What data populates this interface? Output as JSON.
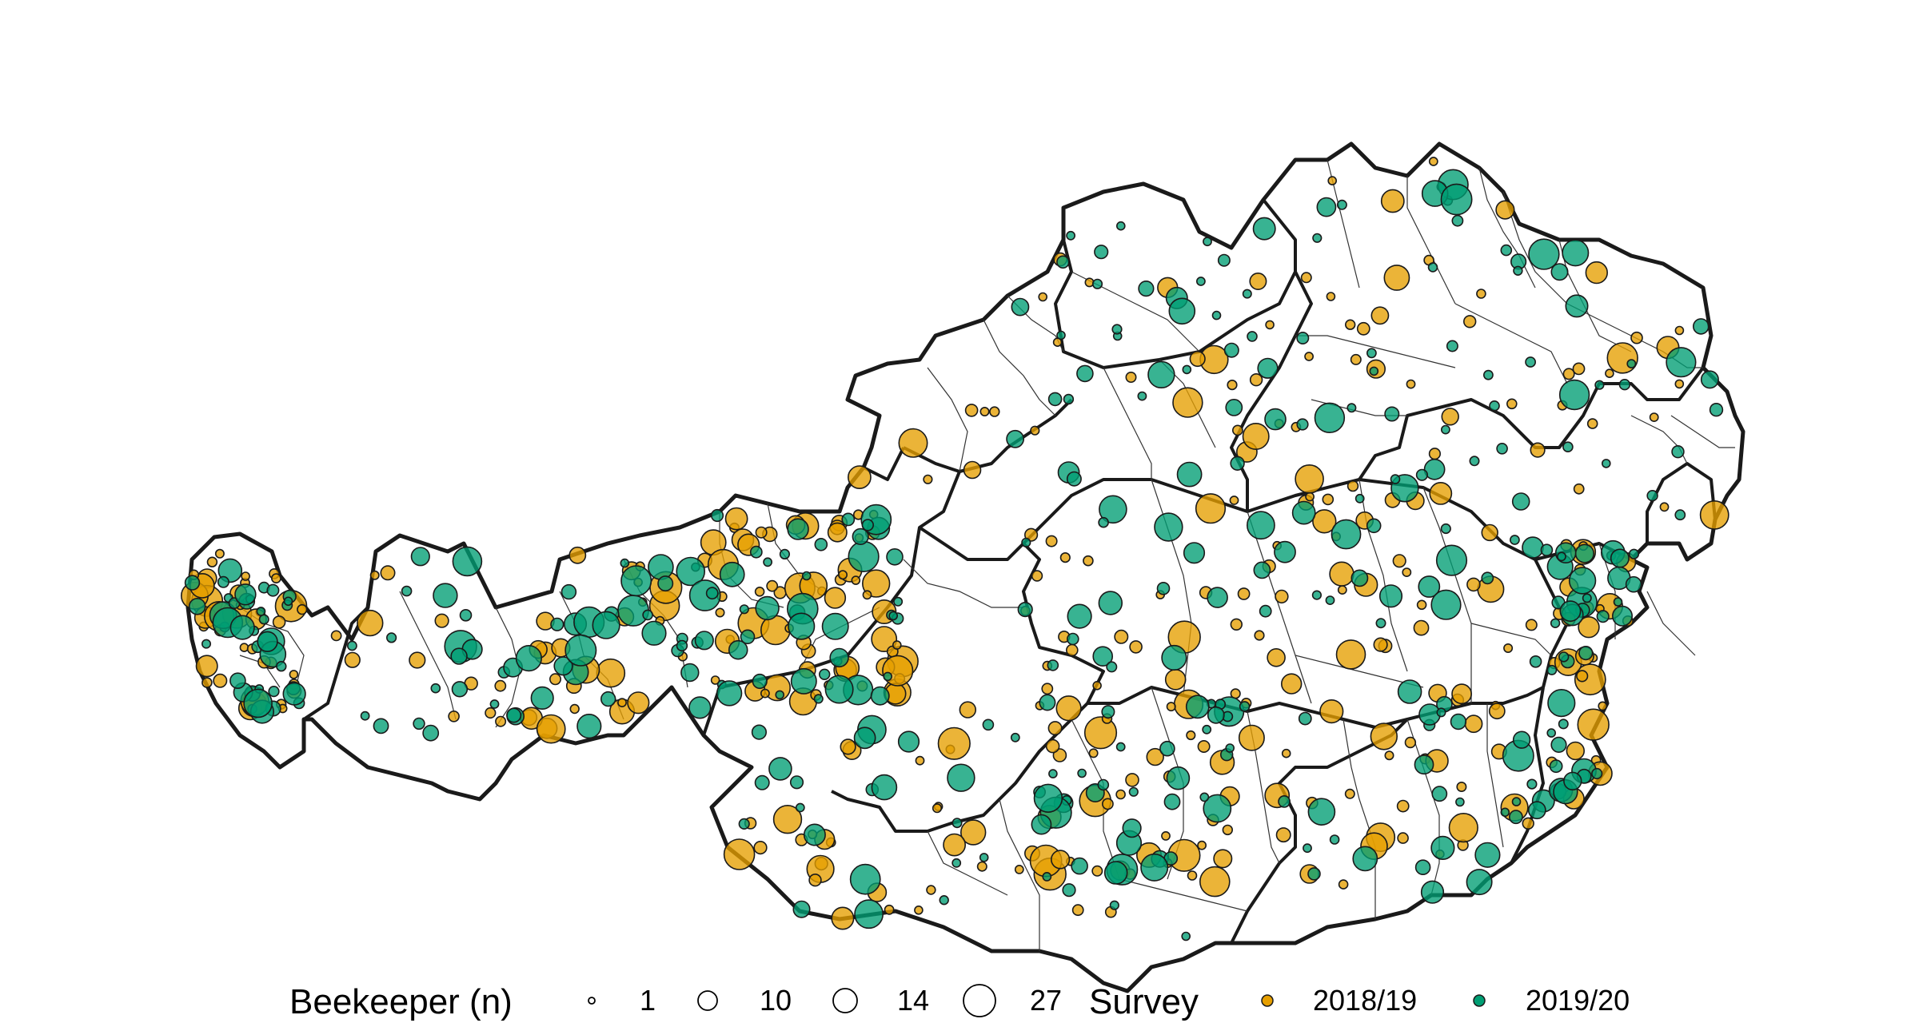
{
  "legend": {
    "size_title": "Beekeeper (n)",
    "size_items": [
      {
        "label": "1",
        "value": 1
      },
      {
        "label": "10",
        "value": 10
      },
      {
        "label": "14",
        "value": 14
      },
      {
        "label": "27",
        "value": 27
      }
    ],
    "color_title": "Survey",
    "color_items": [
      {
        "label": "2018/19",
        "color": "#E69F00"
      },
      {
        "label": "2019/20",
        "color": "#009E73"
      }
    ]
  },
  "colors": {
    "survey_2018_19": "#E69F00",
    "survey_2019_20": "#009E73",
    "border": "#1a1a1a",
    "land": "#ffffff"
  }
}
